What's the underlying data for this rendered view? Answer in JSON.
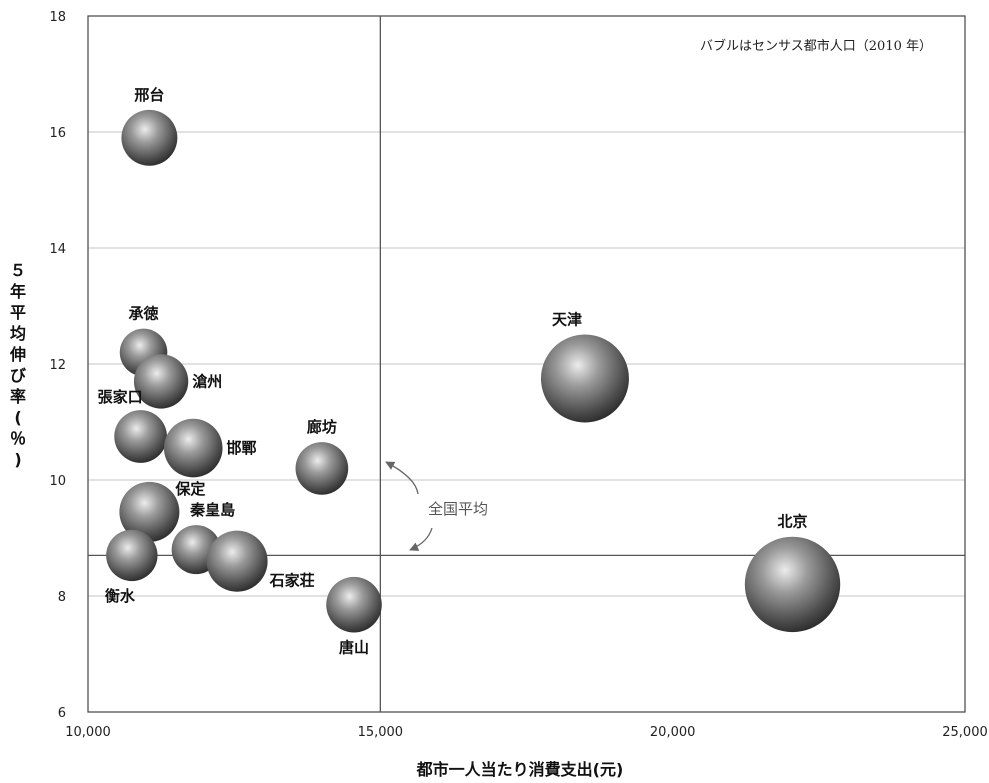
{
  "chart_data": {
    "type": "scatter",
    "subtype": "bubble",
    "title": "",
    "note": "バブルはセンサス都市人口（2010 年）",
    "xlabel": "都市一人当たり消費支出(元)",
    "ylabel": "５年平均伸び率(％)",
    "xlim": [
      10000,
      25000
    ],
    "ylim": [
      6,
      18
    ],
    "x_ticks": [
      10000,
      15000,
      20000,
      25000
    ],
    "x_tick_labels": [
      "10,000",
      "15,000",
      "20,000",
      "25,000"
    ],
    "y_ticks": [
      6,
      8,
      10,
      12,
      14,
      16,
      18
    ],
    "y_tick_labels": [
      "6",
      "8",
      "10",
      "12",
      "14",
      "16",
      "18"
    ],
    "grid": "horizontal",
    "national_average": {
      "label": "全国平均",
      "x": 15000,
      "y": 8.7
    },
    "points": [
      {
        "name": "邢台",
        "x": 11050,
        "y": 15.9,
        "size": 0.46
      },
      {
        "name": "承徳",
        "x": 10950,
        "y": 12.2,
        "size": 0.27
      },
      {
        "name": "滄州",
        "x": 11250,
        "y": 11.7,
        "size": 0.42
      },
      {
        "name": "張家口",
        "x": 10900,
        "y": 10.75,
        "size": 0.38
      },
      {
        "name": "邯鄲",
        "x": 11800,
        "y": 10.55,
        "size": 0.53
      },
      {
        "name": "廊坊",
        "x": 14000,
        "y": 10.2,
        "size": 0.38
      },
      {
        "name": "保定",
        "x": 11050,
        "y": 9.45,
        "size": 0.57
      },
      {
        "name": "秦皇島",
        "x": 11850,
        "y": 8.8,
        "size": 0.3
      },
      {
        "name": "衡水",
        "x": 10750,
        "y": 8.7,
        "size": 0.35
      },
      {
        "name": "石家荘",
        "x": 12550,
        "y": 8.6,
        "size": 0.6
      },
      {
        "name": "唐山",
        "x": 14550,
        "y": 7.85,
        "size": 0.45
      },
      {
        "name": "天津",
        "x": 18500,
        "y": 11.75,
        "size": 0.85
      },
      {
        "name": "北京",
        "x": 22050,
        "y": 8.2,
        "size": 1.0
      }
    ]
  }
}
